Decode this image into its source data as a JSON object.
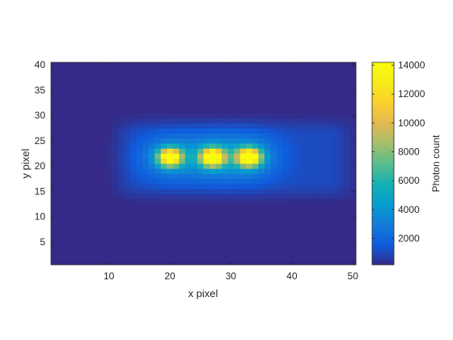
{
  "chart_data": {
    "type": "heatmap",
    "title": "",
    "xlabel": "x pixel",
    "ylabel": "y pixel",
    "xlim": [
      0.5,
      50.5
    ],
    "ylim": [
      0.5,
      40.5
    ],
    "x_ticks": [
      10,
      20,
      30,
      40,
      50
    ],
    "y_ticks": [
      5,
      10,
      15,
      20,
      25,
      30,
      35,
      40
    ],
    "grid": false,
    "grid_size": {
      "nx": 50,
      "ny": 40
    },
    "background_level": 180,
    "halo": {
      "x_range": [
        9,
        52
      ],
      "y_range": [
        12,
        31
      ],
      "level": 900
    },
    "spots": [
      {
        "x": 20,
        "y": 21.8,
        "peak": 13200,
        "sigma_x": 1.3,
        "sigma_y": 1.2
      },
      {
        "x": 27,
        "y": 21.8,
        "peak": 13800,
        "sigma_x": 1.3,
        "sigma_y": 1.2
      },
      {
        "x": 33,
        "y": 21.8,
        "peak": 14100,
        "sigma_x": 1.3,
        "sigma_y": 1.2
      }
    ],
    "colorbar": {
      "label": "Photon count",
      "range": [
        180,
        14200
      ],
      "ticks": [
        2000,
        4000,
        6000,
        8000,
        10000,
        12000,
        14000
      ],
      "colormap": "parula"
    }
  }
}
